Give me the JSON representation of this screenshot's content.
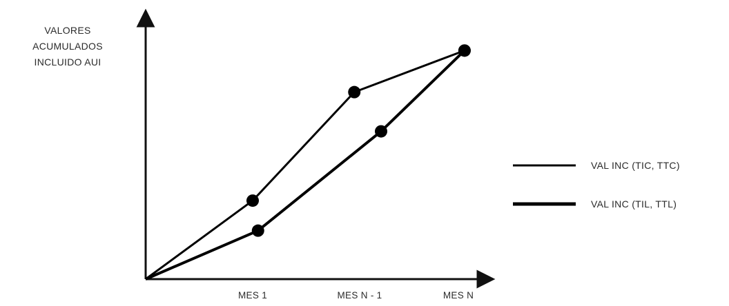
{
  "chart_data": {
    "type": "line",
    "title": "",
    "ylabel_lines": [
      "VALORES",
      "ACUMULADOS",
      "INCLUIDO AUI"
    ],
    "xlabel": "",
    "categories": [
      "MES 1",
      "MES N - 1",
      "MES N"
    ],
    "x_ticks": [
      {
        "label": "MES 1",
        "x": 1
      },
      {
        "label": "MES N - 1",
        "x": 2
      },
      {
        "label": "MES N",
        "x": 3
      }
    ],
    "xlim": [
      0,
      3.25
    ],
    "ylim": [
      0,
      110
    ],
    "grid": false,
    "legend_position": "right",
    "series": [
      {
        "name": "VAL INC (TIC, TTC)",
        "color": "#000000",
        "points": [
          {
            "x": 0,
            "y": 0
          },
          {
            "x": 1,
            "y": 34
          },
          {
            "x": 1.95,
            "y": 81
          },
          {
            "x": 2.98,
            "y": 99
          }
        ]
      },
      {
        "name": "VAL INC (TIL, TTL)",
        "color": "#000000",
        "points": [
          {
            "x": 0,
            "y": 0
          },
          {
            "x": 1.05,
            "y": 21
          },
          {
            "x": 2.2,
            "y": 64
          },
          {
            "x": 2.98,
            "y": 99
          }
        ]
      }
    ]
  }
}
